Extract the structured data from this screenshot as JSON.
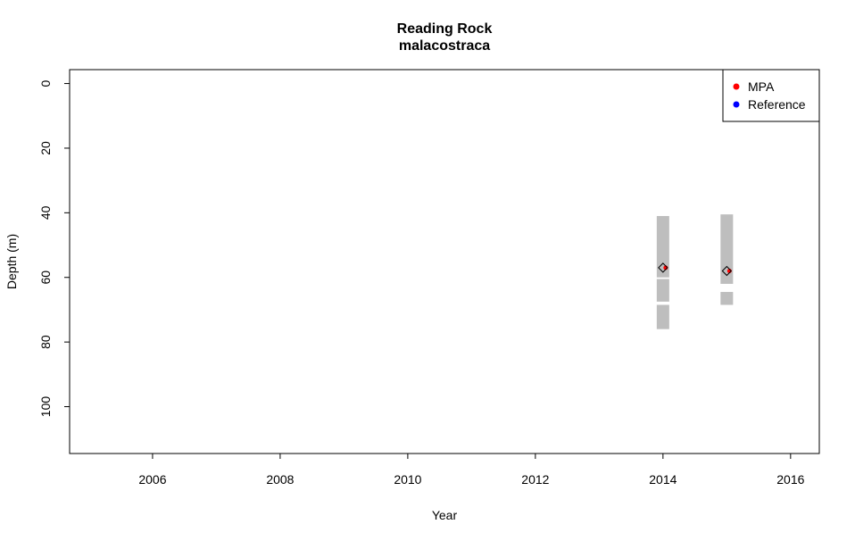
{
  "chart_data": {
    "type": "scatter",
    "title": "Reading Rock",
    "subtitle": "malacostraca",
    "xlabel": "Year",
    "ylabel": "Depth (m)",
    "xlim": [
      2004.7,
      2016.45
    ],
    "ylim": [
      114.5,
      -4.3
    ],
    "y_reversed": true,
    "x_ticks": [
      2006,
      2008,
      2010,
      2012,
      2014,
      2016
    ],
    "y_ticks": [
      0,
      20,
      40,
      60,
      80,
      100
    ],
    "grid": false,
    "legend": {
      "position": "top-right",
      "entries": [
        {
          "label": "MPA",
          "color": "#ff0000"
        },
        {
          "label": "Reference",
          "color": "#0000ff"
        }
      ]
    },
    "depth_ranges": [
      {
        "x": 2014,
        "segments": [
          [
            41,
            60
          ],
          [
            60.5,
            67.5
          ],
          [
            68.5,
            76
          ]
        ],
        "color": "#bebebe"
      },
      {
        "x": 2015,
        "segments": [
          [
            40.5,
            62
          ],
          [
            64.5,
            68.5
          ]
        ],
        "color": "#bebebe"
      }
    ],
    "series": [
      {
        "name": "MPA",
        "color": "#ff0000",
        "points": [
          {
            "x": 2014,
            "y": 57
          },
          {
            "x": 2015,
            "y": 58
          }
        ]
      }
    ],
    "mean_markers": [
      {
        "x": 2014,
        "y": 57
      },
      {
        "x": 2015,
        "y": 58
      }
    ]
  }
}
